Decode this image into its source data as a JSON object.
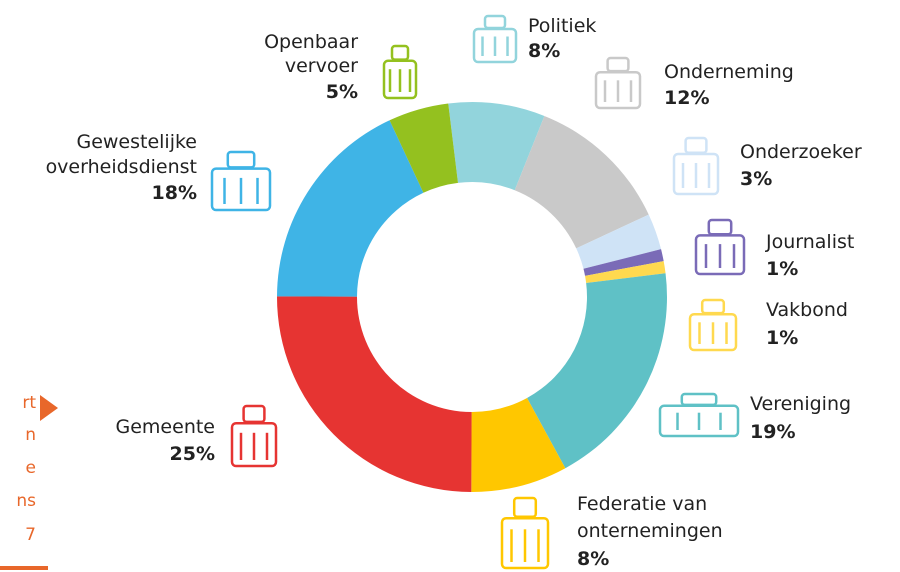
{
  "chart_data": {
    "type": "donut",
    "categories": [
      "Politiek",
      "Onderneming",
      "Onderzoeker",
      "Journalist",
      "Vakbond",
      "Vereniging",
      "Federatie van onternemingen",
      "Gemeente",
      "Gewestelijke overheidsdienst",
      "Openbaar vervoer"
    ],
    "values": [
      8,
      12,
      3,
      1,
      1,
      19,
      8,
      25,
      18,
      5
    ],
    "value_labels": [
      "8%",
      "12%",
      "3%",
      "1%",
      "1%",
      "19%",
      "8%",
      "25%",
      "18%",
      "5%"
    ],
    "colors": [
      "#92d4dc",
      "#c9c9c9",
      "#cfe3f6",
      "#7a6bb7",
      "#ffd94f",
      "#5fc1c6",
      "#ffc700",
      "#e63432",
      "#3fb4e6",
      "#94c11f"
    ]
  },
  "side_note": [
    "rt",
    "n",
    "e",
    "ns",
    "7"
  ]
}
